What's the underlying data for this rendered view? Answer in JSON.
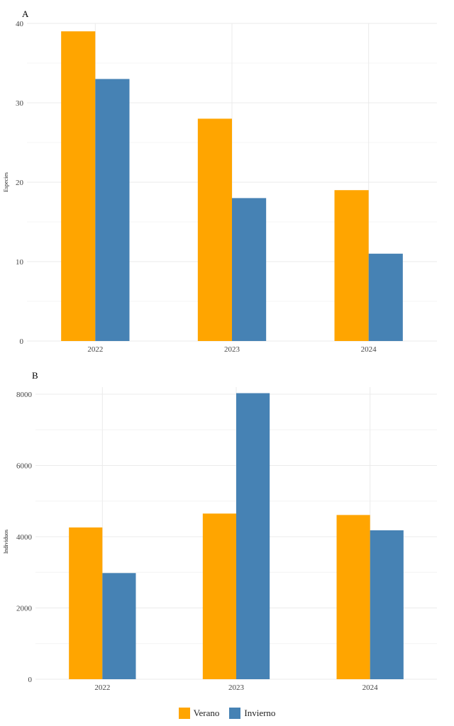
{
  "colors": {
    "verano": "#ffa500",
    "invierno": "#4682b4",
    "grid": "#ebebeb",
    "text": "#444444"
  },
  "legend": {
    "items": [
      "Verano",
      "Invierno"
    ]
  },
  "chart_data": [
    {
      "type": "bar",
      "panel_label": "A",
      "title": "",
      "xlabel": "",
      "ylabel": "Especies",
      "categories": [
        "2022",
        "2023",
        "2024"
      ],
      "series": [
        {
          "name": "Verano",
          "values": [
            39,
            28,
            19
          ]
        },
        {
          "name": "Invierno",
          "values": [
            33,
            18,
            11
          ]
        }
      ],
      "ylim": [
        0,
        40
      ],
      "yticks": [
        "0",
        "10",
        "20",
        "30",
        "40"
      ],
      "grid": true,
      "legend_position": "bottom"
    },
    {
      "type": "bar",
      "panel_label": "B",
      "title": "",
      "xlabel": "",
      "ylabel": "Individuos",
      "categories": [
        "2022",
        "2023",
        "2024"
      ],
      "series": [
        {
          "name": "Verano",
          "values": [
            4260,
            4650,
            4610
          ]
        },
        {
          "name": "Invierno",
          "values": [
            2980,
            8030,
            4180
          ]
        }
      ],
      "ylim": [
        0,
        8200
      ],
      "yticks": [
        "0",
        "2000",
        "4000",
        "6000",
        "8000"
      ],
      "grid": true,
      "legend_position": "bottom"
    }
  ]
}
